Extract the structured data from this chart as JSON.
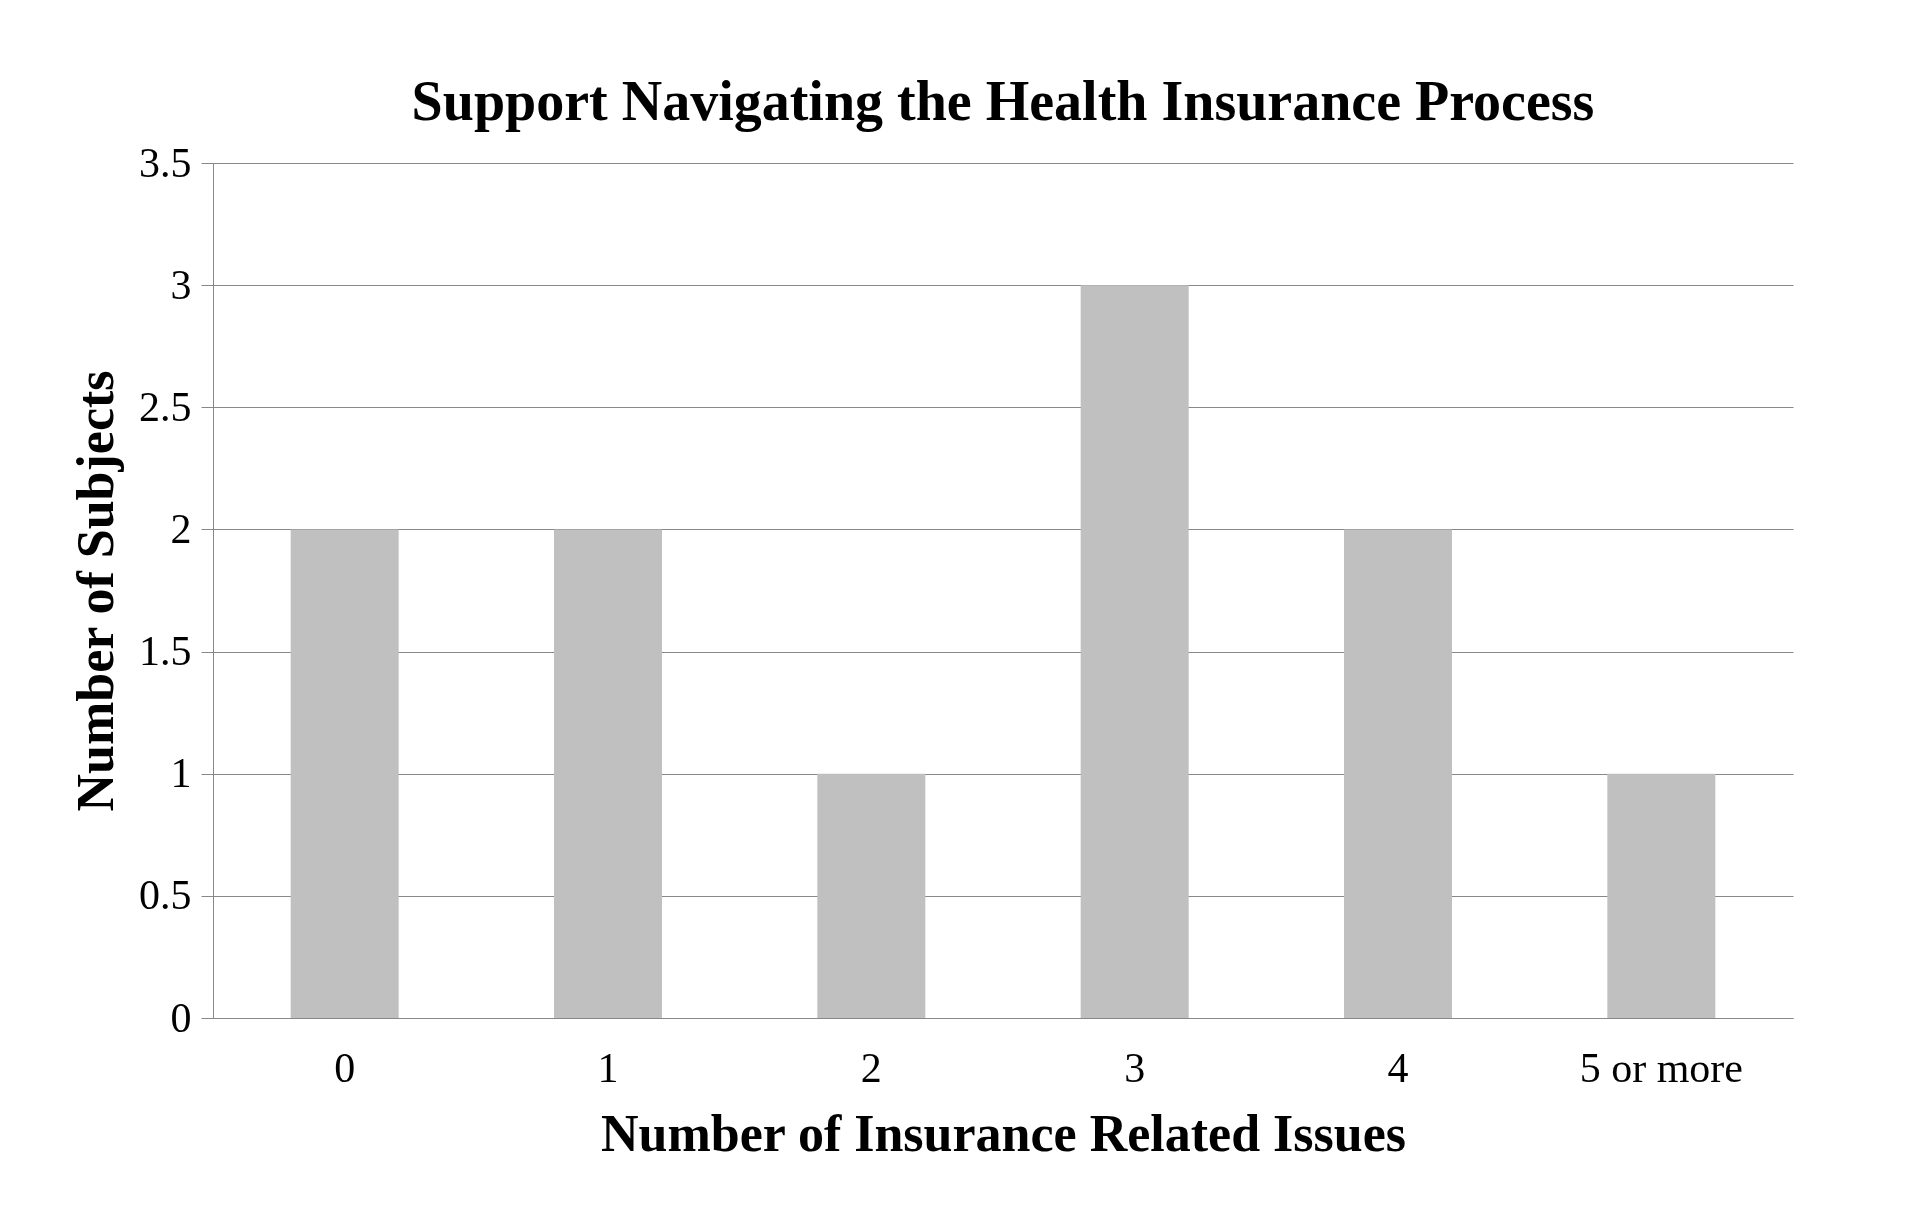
{
  "chart_data": {
    "type": "bar",
    "title": "Support Navigating the Health Insurance Process",
    "xlabel": "Number of Insurance Related Issues",
    "ylabel": "Number of Subjects",
    "categories": [
      "0",
      "1",
      "2",
      "3",
      "4",
      "5 or more"
    ],
    "values": [
      2,
      2,
      1,
      3,
      2,
      1
    ],
    "color": "#c0c0c0",
    "ylim": [
      0,
      3.5
    ],
    "yticks": [
      0,
      0.5,
      1,
      1.5,
      2,
      2.5,
      3,
      3.5
    ],
    "grid": "y",
    "legend": false
  }
}
